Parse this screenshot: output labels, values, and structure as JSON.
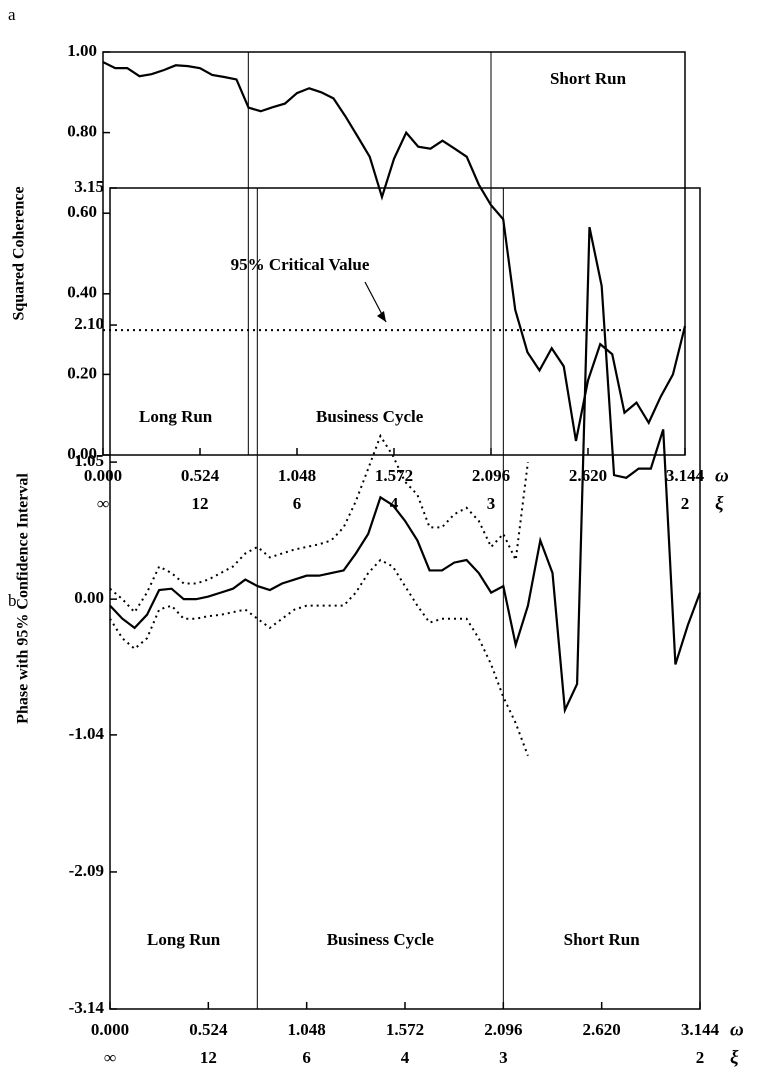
{
  "chart_data": [
    {
      "type": "line",
      "panel": "a",
      "ylabel": "Squared Coherence",
      "xlabel": "ω",
      "x2label": "ξ",
      "xlim": [
        0,
        3.144
      ],
      "ylim": [
        0,
        1
      ],
      "xticks": [
        {
          "value": 0,
          "label": "0.000"
        },
        0.524,
        1.048,
        1.572,
        2.096,
        {
          "value": 2.62,
          "label": "2.620"
        },
        3.144
      ],
      "x2ticks": [
        {
          "value": 0,
          "label": "∞"
        },
        {
          "value": 0.524,
          "label": "12"
        },
        {
          "value": 1.048,
          "label": "6"
        },
        {
          "value": 1.572,
          "label": "4"
        },
        {
          "value": 2.096,
          "label": "3"
        },
        {
          "value": 3.144,
          "label": "2"
        }
      ],
      "yticks": [
        {
          "value": 0,
          "label": "0.00"
        },
        {
          "value": 0.2,
          "label": "0.20"
        },
        {
          "value": 0.4,
          "label": "0.40"
        },
        {
          "value": 0.6,
          "label": "0.60"
        },
        {
          "value": 0.8,
          "label": "0.80"
        },
        {
          "value": 1,
          "label": "1.00"
        }
      ],
      "vlines": [
        0.785,
        2.096
      ],
      "regions": [
        "Long Run",
        "Business Cycle",
        "Short Run"
      ],
      "hline": 0.31,
      "hline_style": "dotted",
      "annotation": "95% Critical Value",
      "x": [
        0,
        0.066,
        0.131,
        0.197,
        0.262,
        0.328,
        0.393,
        0.459,
        0.524,
        0.59,
        0.655,
        0.721,
        0.786,
        0.852,
        0.917,
        0.983,
        1.048,
        1.114,
        1.179,
        1.245,
        1.31,
        1.376,
        1.441,
        1.507,
        1.572,
        1.638,
        1.703,
        1.769,
        1.834,
        1.9,
        1.965,
        2.031,
        2.096,
        2.162,
        2.227,
        2.293,
        2.358,
        2.424,
        2.489,
        2.555,
        2.62,
        2.686,
        2.751,
        2.817,
        2.882,
        2.948,
        3.013,
        3.079,
        3.144
      ],
      "series": [
        {
          "color": "#000000",
          "style": "solid",
          "values": [
            0.975,
            0.96,
            0.96,
            0.94,
            0.945,
            0.955,
            0.967,
            0.965,
            0.96,
            0.943,
            0.938,
            0.932,
            0.862,
            0.853,
            0.863,
            0.872,
            0.898,
            0.91,
            0.9,
            0.885,
            0.84,
            0.79,
            0.74,
            0.64,
            0.735,
            0.8,
            0.765,
            0.76,
            0.78,
            0.76,
            0.74,
            0.67,
            0.62,
            0.585,
            0.36,
            0.255,
            0.21,
            0.265,
            0.22,
            0.035,
            0.185,
            0.275,
            0.25,
            0.105,
            0.13,
            0.08,
            0.145,
            0.2,
            0.32
          ]
        }
      ]
    },
    {
      "type": "line",
      "panel": "b",
      "ylabel": "Phase with 95% Confidence Interval",
      "xlabel": "ω",
      "x2label": "ξ",
      "xlim": [
        0,
        3.144
      ],
      "ylim": [
        -3.14,
        3.15
      ],
      "xticks": [
        {
          "value": 0,
          "label": "0.000"
        },
        0.524,
        1.048,
        1.572,
        2.096,
        {
          "value": 2.62,
          "label": "2.620"
        },
        3.144
      ],
      "x2ticks": [
        {
          "value": 0,
          "label": "∞"
        },
        {
          "value": 0.524,
          "label": "12"
        },
        {
          "value": 1.048,
          "label": "6"
        },
        {
          "value": 1.572,
          "label": "4"
        },
        {
          "value": 2.096,
          "label": "3"
        },
        {
          "value": 3.144,
          "label": "2"
        }
      ],
      "yticks": [
        -3.14,
        -2.09,
        -1.04,
        {
          "value": 0,
          "label": "0.00"
        },
        1.05,
        {
          "value": 2.1,
          "label": "2.10"
        },
        3.15
      ],
      "vlines": [
        0.785,
        2.096
      ],
      "regions": [
        "Long Run",
        "Business Cycle",
        "Short Run"
      ],
      "x": [
        0,
        0.066,
        0.131,
        0.197,
        0.262,
        0.328,
        0.393,
        0.459,
        0.524,
        0.59,
        0.655,
        0.721,
        0.786,
        0.852,
        0.917,
        0.983,
        1.048,
        1.114,
        1.179,
        1.245,
        1.31,
        1.376,
        1.441,
        1.507,
        1.572,
        1.638,
        1.703,
        1.769,
        1.834,
        1.9,
        1.965,
        2.031,
        2.096,
        2.162,
        2.227,
        2.293,
        2.358,
        2.424,
        2.489,
        2.555,
        2.62,
        2.686,
        2.751,
        2.817,
        2.882,
        2.948,
        3.013,
        3.079,
        3.144
      ],
      "series": [
        {
          "color": "#000000",
          "style": "solid",
          "values": [
            -0.05,
            -0.15,
            -0.22,
            -0.12,
            0.07,
            0.08,
            0.0,
            0.0,
            0.02,
            0.05,
            0.08,
            0.15,
            0.1,
            0.07,
            0.12,
            0.15,
            0.18,
            0.18,
            0.2,
            0.22,
            0.35,
            0.5,
            0.78,
            0.72,
            0.6,
            0.45,
            0.22,
            0.22,
            0.28,
            0.3,
            0.2,
            0.05,
            0.1,
            -0.35,
            -0.05,
            0.45,
            0.2,
            -0.85,
            -0.65,
            2.85,
            2.4,
            0.95,
            0.93,
            1.0,
            1.0,
            1.3,
            -0.5,
            -0.2,
            0.05
          ]
        },
        {
          "color": "#000000",
          "style": "dotted",
          "values": [
            0.08,
            0.0,
            -0.1,
            0.05,
            0.25,
            0.2,
            0.12,
            0.12,
            0.15,
            0.2,
            0.25,
            0.35,
            0.4,
            0.32,
            0.35,
            0.38,
            0.4,
            0.42,
            0.45,
            0.55,
            0.75,
            1.0,
            1.25,
            1.1,
            0.9,
            0.8,
            0.55,
            0.55,
            0.65,
            0.7,
            0.6,
            0.4,
            0.5,
            0.3,
            1.05,
            null,
            null,
            null,
            null,
            null,
            null,
            null,
            null,
            null,
            null,
            null,
            null,
            null,
            null
          ]
        },
        {
          "color": "#000000",
          "style": "dotted",
          "values": [
            -0.15,
            -0.3,
            -0.38,
            -0.3,
            -0.08,
            -0.05,
            -0.15,
            -0.15,
            -0.13,
            -0.12,
            -0.1,
            -0.08,
            -0.15,
            -0.22,
            -0.15,
            -0.08,
            -0.05,
            -0.05,
            -0.05,
            -0.05,
            0.05,
            0.2,
            0.3,
            0.25,
            0.1,
            -0.05,
            -0.18,
            -0.15,
            -0.15,
            -0.15,
            -0.3,
            -0.5,
            -0.75,
            -0.95,
            -1.2,
            null,
            null,
            null,
            null,
            null,
            null,
            null,
            null,
            null,
            null,
            null,
            null,
            null,
            null
          ]
        }
      ]
    }
  ]
}
